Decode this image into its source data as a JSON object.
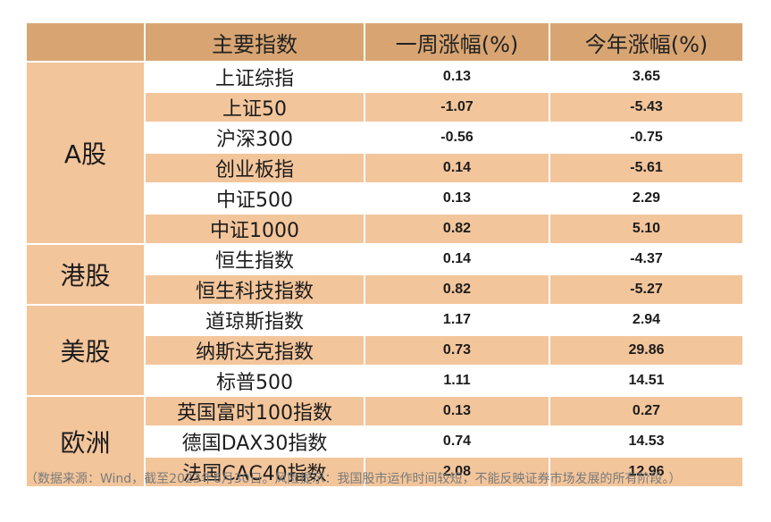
{
  "table": {
    "headers": [
      "主要指数",
      "一周涨幅(%)",
      "今年涨幅(%)"
    ],
    "groups": [
      {
        "region": "A股",
        "rows": [
          {
            "name": "上证综指",
            "week": "0.13",
            "ytd": "3.65"
          },
          {
            "name": "上证50",
            "week": "-1.07",
            "ytd": "-5.43"
          },
          {
            "name": "沪深300",
            "week": "-0.56",
            "ytd": "-0.75"
          },
          {
            "name": "创业板指",
            "week": "0.14",
            "ytd": "-5.61"
          },
          {
            "name": "中证500",
            "week": "0.13",
            "ytd": "2.29"
          },
          {
            "name": "中证1000",
            "week": "0.82",
            "ytd": "5.10"
          }
        ]
      },
      {
        "region": "港股",
        "rows": [
          {
            "name": "恒生指数",
            "week": "0.14",
            "ytd": "-4.37"
          },
          {
            "name": "恒生科技指数",
            "week": "0.82",
            "ytd": "-5.27"
          }
        ]
      },
      {
        "region": "美股",
        "rows": [
          {
            "name": "道琼斯指数",
            "week": "1.17",
            "ytd": "2.94"
          },
          {
            "name": "纳斯达克指数",
            "week": "0.73",
            "ytd": "29.86"
          },
          {
            "name": "标普500",
            "week": "1.11",
            "ytd": "14.51"
          }
        ]
      },
      {
        "region": "欧洲",
        "rows": [
          {
            "name": "英国富时100指数",
            "week": "0.13",
            "ytd": "0.27"
          },
          {
            "name": "德国DAX30指数",
            "week": "0.74",
            "ytd": "14.53"
          },
          {
            "name": "法国CAC40指数",
            "week": "2.08",
            "ytd": "12.96"
          }
        ]
      }
    ]
  },
  "footnote": "（数据来源：Wind，截至2023年6月30日。风险提示：我国股市运作时间较短，不能反映证券市场发展的所有阶段。）",
  "colors": {
    "header_bg": "#d8a572",
    "band_bg": "#f3c59b",
    "white_bg": "#ffffff",
    "number_text": "#1b2b4a"
  }
}
